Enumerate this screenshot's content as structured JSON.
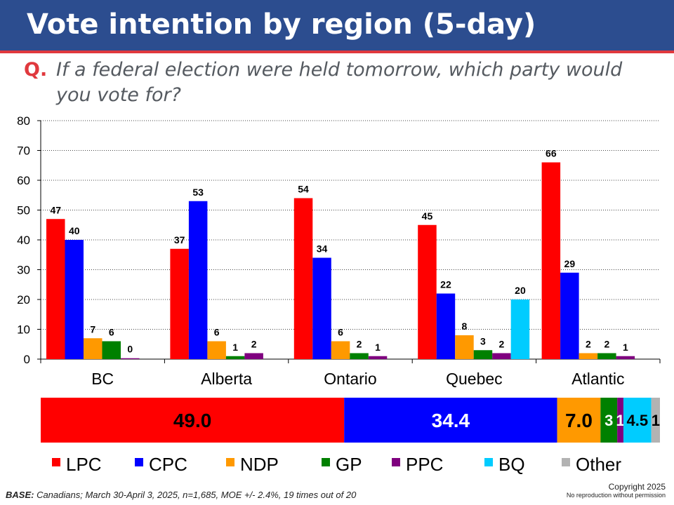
{
  "header": {
    "title": "Vote intention by region (5-day)"
  },
  "question": {
    "label": "Q.",
    "text": "If a federal election were held tomorrow, which party would you vote for?"
  },
  "colors": {
    "header_bg": "#2c4d8f",
    "accent": "#e0393e",
    "LPC": "#ff0000",
    "CPC": "#0000ff",
    "NDP": "#ff9900",
    "GP": "#008000",
    "PPC": "#7f007f",
    "BQ": "#00ccff",
    "Other": "#b3b3b3"
  },
  "chart_data": [
    {
      "type": "bar",
      "categories": [
        "BC",
        "Alberta",
        "Ontario",
        "Quebec",
        "Atlantic"
      ],
      "ylim": [
        0,
        80
      ],
      "yticks": [
        0,
        10,
        20,
        30,
        40,
        50,
        60,
        70,
        80
      ],
      "grid": true,
      "series": [
        {
          "name": "LPC",
          "values": [
            47,
            37,
            54,
            45,
            66
          ],
          "labels": [
            "47",
            "37",
            "54",
            "45",
            "66"
          ]
        },
        {
          "name": "CPC",
          "values": [
            40,
            53,
            34,
            22,
            29
          ],
          "labels": [
            "40",
            "53",
            "34",
            "22",
            "29"
          ]
        },
        {
          "name": "NDP",
          "values": [
            7,
            6,
            6,
            8,
            2
          ],
          "labels": [
            "7",
            "6",
            "6",
            "8",
            "2"
          ]
        },
        {
          "name": "GP",
          "values": [
            6,
            1,
            2,
            3,
            2
          ],
          "labels": [
            "6",
            "1",
            "2",
            "3",
            "2"
          ]
        },
        {
          "name": "PPC",
          "values": [
            0.3,
            2,
            1,
            2,
            1
          ],
          "labels": [
            "0",
            "2",
            "1",
            "2",
            "1"
          ]
        },
        {
          "name": "BQ",
          "values": [
            null,
            null,
            null,
            20,
            null
          ],
          "labels": [
            null,
            null,
            null,
            "20",
            null
          ]
        }
      ]
    },
    {
      "type": "stacked-bar",
      "segments": [
        {
          "name": "LPC",
          "value": 49.0,
          "label": "49.0"
        },
        {
          "name": "CPC",
          "value": 34.4,
          "label": "34.4"
        },
        {
          "name": "NDP",
          "value": 7.0,
          "label": "7.0"
        },
        {
          "name": "GP",
          "value": 2.7,
          "label": "3"
        },
        {
          "name": "PPC",
          "value": 1.0,
          "label": "1"
        },
        {
          "name": "BQ",
          "value": 4.5,
          "label": "4.5"
        },
        {
          "name": "Other",
          "value": 1.4,
          "label": "1"
        }
      ],
      "legend": [
        "LPC",
        "CPC",
        "NDP",
        "GP",
        "PPC",
        "BQ",
        "Other"
      ],
      "legend_position": "bottom"
    }
  ],
  "footer": {
    "base_label": "BASE:",
    "base_text": " Canadians; March 30-April 3, 2025, n=1,685, MOE +/- 2.4%, 19 times out of 20",
    "copyright": "Copyright 2025",
    "no_repro": "No reproduction without permission"
  }
}
